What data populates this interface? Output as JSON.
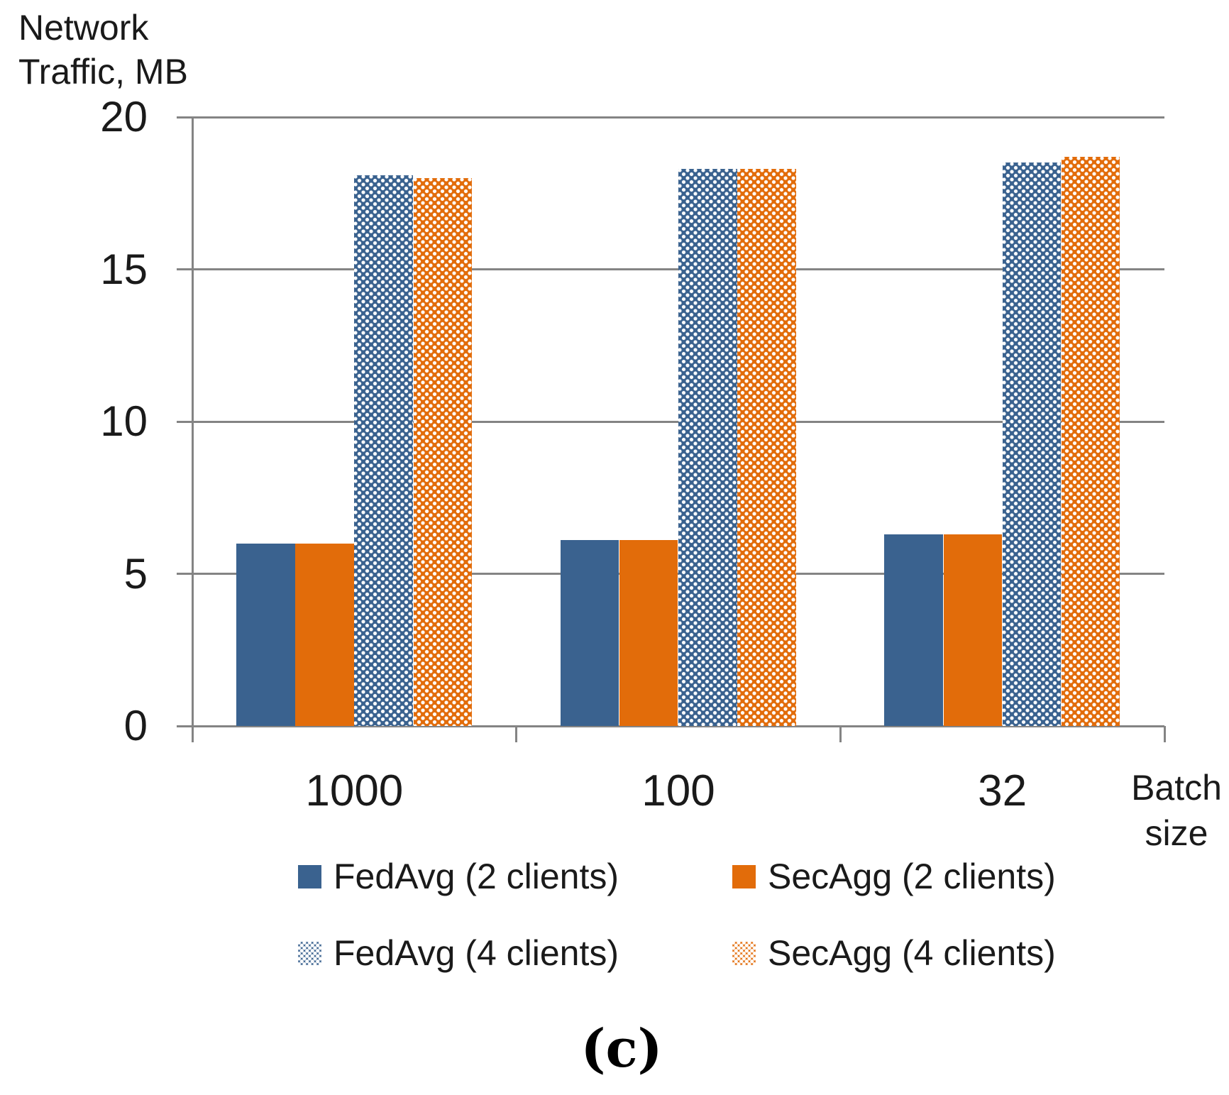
{
  "chart_data": {
    "type": "bar",
    "title": "",
    "ylabel": "Network Traffic, MB",
    "ylabel_lines": [
      "Network",
      "Traffic, MB"
    ],
    "xlabel": "Batch size",
    "xlabel_lines": [
      "Batch",
      "size"
    ],
    "categories": [
      "1000",
      "100",
      "32"
    ],
    "series": [
      {
        "name": "FedAvg (2 clients)",
        "pattern": "solid",
        "color": "#3A628F",
        "values": [
          6.0,
          6.1,
          6.3
        ]
      },
      {
        "name": "SecAgg (2 clients)",
        "pattern": "solid",
        "color": "#E26C0A",
        "values": [
          6.0,
          6.1,
          6.3
        ]
      },
      {
        "name": "FedAvg (4 clients)",
        "pattern": "dotted",
        "color": "#3A628F",
        "values": [
          18.1,
          18.3,
          18.5
        ]
      },
      {
        "name": "SecAgg (4 clients)",
        "pattern": "dotted",
        "color": "#E26C0A",
        "values": [
          18.0,
          18.3,
          18.7
        ]
      }
    ],
    "ylim": [
      0,
      20
    ],
    "yticks": [
      0,
      5,
      10,
      15,
      20
    ],
    "grid": true,
    "legend_position": "bottom"
  },
  "colors": {
    "axis_gray": "#848484",
    "blue": "#3A628F",
    "orange": "#E26C0A",
    "background": "#ffffff"
  },
  "caption": "(c)"
}
